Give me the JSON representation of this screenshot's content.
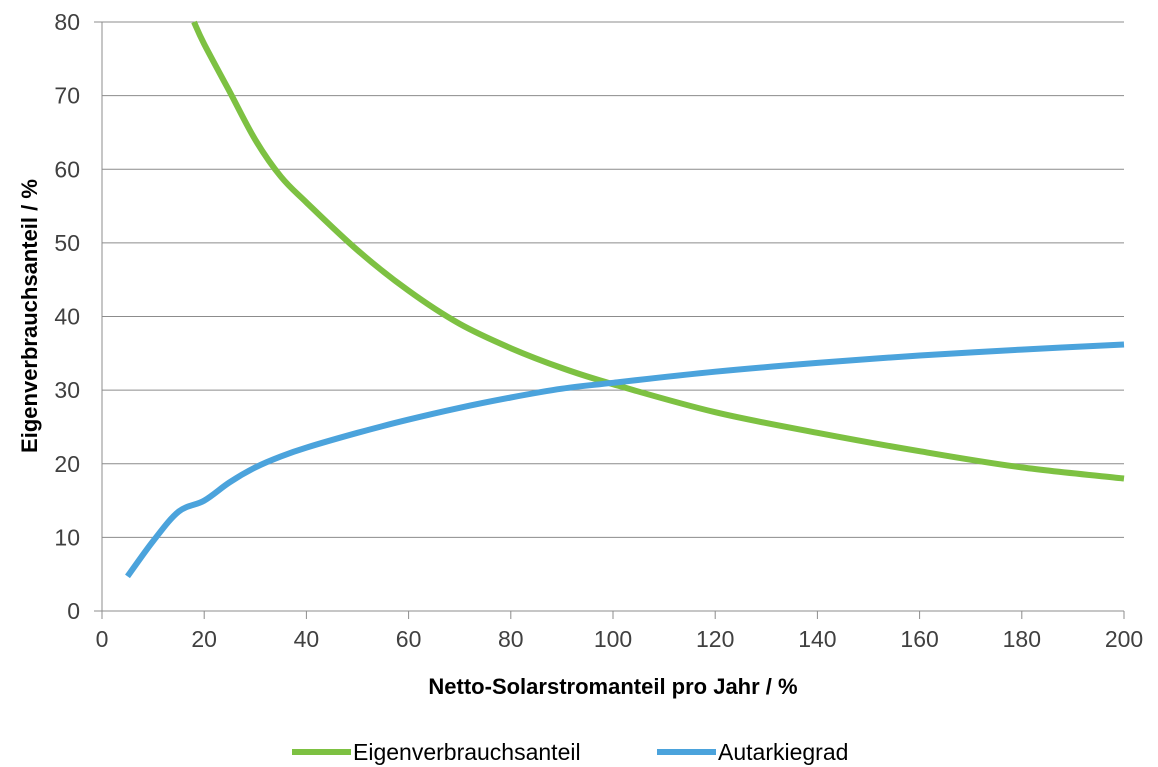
{
  "chart_data": {
    "type": "line",
    "title": "",
    "xlabel": "Netto-Solarstromanteil pro Jahr / %",
    "ylabel": "Eigenverbrauchsanteil / %",
    "xlim": [
      0,
      200
    ],
    "ylim": [
      0,
      80
    ],
    "xticks": [
      0,
      20,
      40,
      60,
      80,
      100,
      120,
      140,
      160,
      180,
      200
    ],
    "yticks": [
      0,
      10,
      20,
      30,
      40,
      50,
      60,
      70,
      80
    ],
    "grid": "horizontal",
    "legend_position": "bottom",
    "series": [
      {
        "name": "Eigenverbrauchsanteil",
        "color": "#7dc142",
        "points": [
          [
            18,
            80
          ],
          [
            20,
            77
          ],
          [
            25,
            70.5
          ],
          [
            30,
            64
          ],
          [
            35,
            59
          ],
          [
            40,
            55.5
          ],
          [
            50,
            49
          ],
          [
            60,
            43.5
          ],
          [
            70,
            39
          ],
          [
            80,
            35.7
          ],
          [
            90,
            33
          ],
          [
            100,
            30.8
          ],
          [
            120,
            27
          ],
          [
            140,
            24.2
          ],
          [
            160,
            21.7
          ],
          [
            180,
            19.5
          ],
          [
            200,
            18
          ]
        ]
      },
      {
        "name": "Autarkiegrad",
        "color": "#4ba3dc",
        "points": [
          [
            5,
            4.7
          ],
          [
            10,
            9.5
          ],
          [
            15,
            13.5
          ],
          [
            20,
            15
          ],
          [
            25,
            17.5
          ],
          [
            30,
            19.5
          ],
          [
            35,
            21
          ],
          [
            40,
            22.2
          ],
          [
            50,
            24.2
          ],
          [
            60,
            26
          ],
          [
            70,
            27.6
          ],
          [
            80,
            29
          ],
          [
            90,
            30.2
          ],
          [
            100,
            31
          ],
          [
            120,
            32.5
          ],
          [
            140,
            33.7
          ],
          [
            160,
            34.7
          ],
          [
            180,
            35.5
          ],
          [
            200,
            36.2
          ]
        ]
      }
    ]
  }
}
